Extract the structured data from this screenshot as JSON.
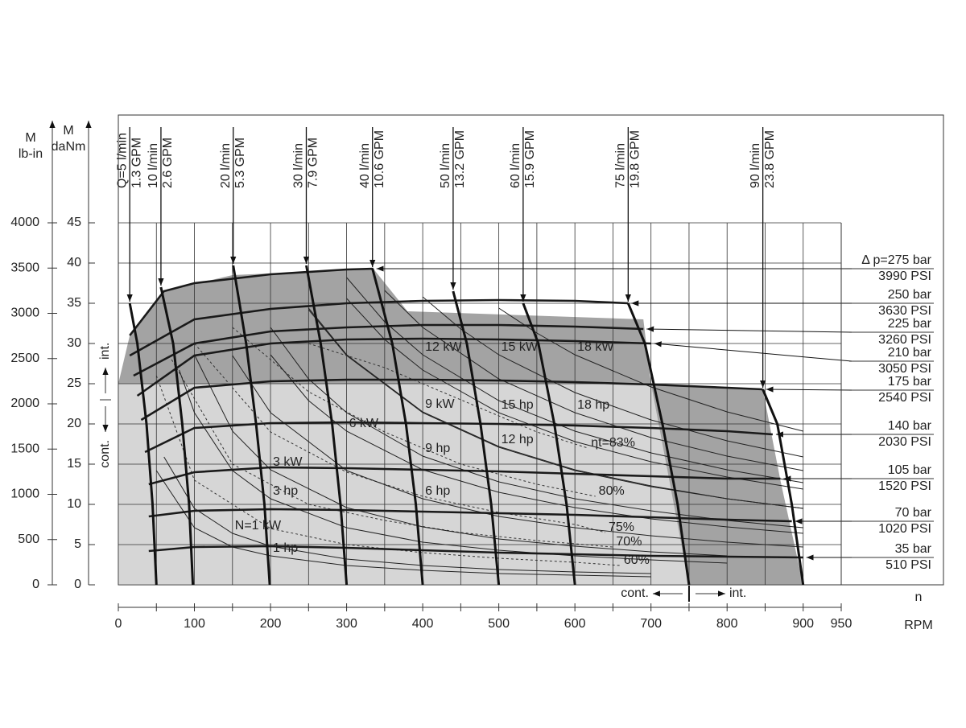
{
  "chart_data": {
    "type": "motor-performance-map",
    "x_symbol": "n",
    "x_label": "RPM",
    "y_symbol": "M",
    "y_label": "daNm",
    "y2_symbol": "M",
    "y2_label": "lb-in",
    "xlim": [
      0,
      950
    ],
    "xticks": [
      0,
      100,
      200,
      300,
      400,
      500,
      600,
      700,
      800,
      900,
      950
    ],
    "xgrid": [
      0,
      50,
      100,
      150,
      200,
      250,
      300,
      350,
      400,
      450,
      500,
      550,
      600,
      650,
      700,
      750,
      800,
      850,
      900,
      950
    ],
    "ylim": [
      0,
      45
    ],
    "yticks": [
      0,
      5,
      10,
      15,
      20,
      25,
      30,
      35,
      40,
      45
    ],
    "y2lim": [
      0,
      4000
    ],
    "y2ticks": [
      0,
      500,
      1000,
      1500,
      2000,
      2500,
      3000,
      3500,
      4000
    ],
    "grid": true,
    "cont_label": "cont.",
    "int_label": "int.",
    "x_split": 750,
    "y_split": 23,
    "regions": [
      {
        "color": "#d6d6d6",
        "x": [
          0,
          0,
          700,
          750
        ],
        "values": [
          0,
          25,
          25,
          0
        ]
      },
      {
        "color": "#a3a3a3",
        "x": [
          0,
          15,
          60,
          150,
          335,
          380,
          690,
          700,
          847,
          870,
          900,
          750,
          700,
          0
        ],
        "values": [
          25,
          31,
          36.5,
          38.5,
          39.3,
          34,
          33,
          25,
          24.3,
          13,
          0,
          0,
          25,
          25
        ]
      }
    ],
    "pressure_series": [
      {
        "name": "Δ p=275 bar",
        "psi": "3990 PSI",
        "x": [
          15,
          60,
          100,
          200,
          300,
          335
        ],
        "values": [
          31,
          36.5,
          37.5,
          38.6,
          39.2,
          39.3
        ]
      },
      {
        "name": "250 bar",
        "psi": "3630 PSI",
        "x": [
          15,
          100,
          200,
          300,
          400,
          500,
          600,
          670
        ],
        "values": [
          28.5,
          33,
          34.3,
          35,
          35.3,
          35.4,
          35.3,
          35
        ]
      },
      {
        "name": "225 bar",
        "psi": "3260 PSI",
        "x": [
          20,
          100,
          200,
          300,
          400,
          500,
          600,
          690
        ],
        "values": [
          26,
          30,
          31.5,
          32,
          32.3,
          32.3,
          32.1,
          31.8
        ]
      },
      {
        "name": "210 bar",
        "psi": "3050 PSI",
        "x": [
          25,
          100,
          200,
          300,
          400,
          500,
          600,
          700
        ],
        "values": [
          23.5,
          28.5,
          30,
          30.5,
          30.6,
          30.5,
          30.3,
          30
        ]
      },
      {
        "name": "175 bar",
        "psi": "2540 PSI",
        "x": [
          30,
          100,
          200,
          300,
          400,
          500,
          600,
          700,
          800,
          847
        ],
        "values": [
          20.5,
          24.5,
          25.3,
          25.5,
          25.5,
          25.4,
          25.2,
          24.9,
          24.5,
          24.3
        ]
      },
      {
        "name": "140 bar",
        "psi": "2030 PSI",
        "x": [
          35,
          100,
          200,
          300,
          400,
          500,
          600,
          700,
          800,
          860
        ],
        "values": [
          16.5,
          19.5,
          20.1,
          20.2,
          20.1,
          20,
          19.8,
          19.5,
          19.1,
          18.7
        ]
      },
      {
        "name": "105 bar",
        "psi": "1520 PSI",
        "x": [
          40,
          100,
          200,
          300,
          400,
          500,
          600,
          700,
          800,
          870
        ],
        "values": [
          12.5,
          14,
          14.6,
          14.5,
          14.3,
          14.1,
          13.8,
          13.5,
          13.2,
          13.2
        ]
      },
      {
        "name": "70 bar",
        "psi": "1020 PSI",
        "x": [
          40,
          100,
          200,
          300,
          400,
          500,
          600,
          700,
          800,
          885
        ],
        "values": [
          8.5,
          9.2,
          9.4,
          9.3,
          9.1,
          8.9,
          8.7,
          8.4,
          8.1,
          7.9
        ]
      },
      {
        "name": "35 bar",
        "psi": "510 PSI",
        "x": [
          40,
          100,
          200,
          300,
          400,
          500,
          600,
          700,
          800,
          900
        ],
        "values": [
          4.2,
          4.7,
          4.8,
          4.6,
          4.3,
          4,
          3.8,
          3.6,
          3.5,
          3.4
        ]
      }
    ],
    "flow_series": [
      {
        "name": "Q=5 l/min",
        "gpm": "1.3 GPM",
        "x": [
          50,
          45,
          37,
          25,
          15
        ],
        "values": [
          0,
          10,
          20,
          30,
          35
        ]
      },
      {
        "name": "10 l/min",
        "gpm": "2.6 GPM",
        "x": [
          98,
          93,
          84,
          72,
          56
        ],
        "values": [
          0,
          10,
          20,
          30,
          37
        ]
      },
      {
        "name": "20 l/min",
        "gpm": "5.3 GPM",
        "x": [
          199,
          192,
          181,
          168,
          151
        ],
        "values": [
          0,
          10,
          20,
          30,
          39.7
        ]
      },
      {
        "name": "30 l/min",
        "gpm": "7.9 GPM",
        "x": [
          300,
          292,
          281,
          266,
          247
        ],
        "values": [
          0,
          10,
          20,
          30,
          39.7
        ]
      },
      {
        "name": "40 l/min",
        "gpm": "10.6 GPM",
        "x": [
          400,
          391,
          378,
          360,
          334
        ],
        "values": [
          0,
          10,
          20,
          30,
          39.3
        ]
      },
      {
        "name": "50 l/min",
        "gpm": "13.2 GPM",
        "x": [
          500,
          490,
          476,
          458,
          440
        ],
        "values": [
          0,
          10,
          20,
          30,
          36.5
        ]
      },
      {
        "name": "60 l/min",
        "gpm": "15.9 GPM",
        "x": [
          600,
          589,
          573,
          552,
          532
        ],
        "values": [
          0,
          10,
          20,
          30,
          35
        ]
      },
      {
        "name": "75 l/min",
        "gpm": "19.8 GPM",
        "x": [
          750,
          735,
          715,
          692,
          670
        ],
        "values": [
          0,
          10,
          20,
          30,
          35
        ]
      },
      {
        "name": "90 l/min",
        "gpm": "23.8 GPM",
        "x": [
          900,
          885,
          866,
          847
        ],
        "values": [
          0,
          10,
          20,
          24.3
        ]
      }
    ],
    "power_kw": [
      {
        "name": "N=1 kW",
        "x": [
          60,
          100,
          150,
          200,
          300,
          400,
          500,
          600,
          700
        ],
        "values": [
          15.9,
          9.5,
          6.4,
          4.8,
          3.2,
          2.4,
          1.9,
          1.6,
          1.4
        ]
      },
      {
        "name": "3 kW",
        "x": [
          100,
          150,
          200,
          300,
          400,
          500,
          600,
          700,
          800
        ],
        "values": [
          28.6,
          19.1,
          14.3,
          9.6,
          7.2,
          5.7,
          4.8,
          4.1,
          3.6
        ]
      },
      {
        "name": "6 kW",
        "x": [
          200,
          250,
          300,
          400,
          500,
          600,
          700,
          800,
          900
        ],
        "values": [
          28.6,
          22.9,
          19.1,
          14.3,
          11.5,
          9.6,
          8.2,
          7.2,
          6.4
        ]
      },
      {
        "name": "9 kW",
        "x": [
          250,
          300,
          400,
          500,
          600,
          700,
          800,
          900
        ],
        "values": [
          34.4,
          28.6,
          21.5,
          17.2,
          14.3,
          12.3,
          10.7,
          9.5
        ]
      },
      {
        "name": "12 kW",
        "x": [
          300,
          350,
          400,
          500,
          600,
          700,
          800,
          900
        ],
        "values": [
          38.2,
          32.7,
          28.6,
          22.9,
          19.1,
          16.4,
          14.3,
          12.7
        ]
      },
      {
        "name": "15 kW",
        "x": [
          400,
          450,
          500,
          600,
          700,
          800,
          900
        ],
        "values": [
          35.8,
          31.8,
          28.6,
          23.9,
          20.5,
          17.9,
          15.9
        ]
      },
      {
        "name": "18 kW",
        "x": [
          500,
          550,
          600,
          700,
          800,
          900
        ],
        "values": [
          34.4,
          31.3,
          28.6,
          24.6,
          21.5,
          19.1
        ]
      }
    ],
    "power_hp": [
      {
        "name": "1 hp",
        "x": [
          50,
          100,
          150,
          200,
          300,
          400,
          500,
          600,
          700
        ],
        "values": [
          14.2,
          7.1,
          4.7,
          3.6,
          2.4,
          1.8,
          1.4,
          1.2,
          1
        ]
      },
      {
        "name": "3 hp",
        "x": [
          80,
          100,
          150,
          200,
          300,
          400,
          500,
          600,
          700,
          800
        ],
        "values": [
          26.7,
          21.4,
          14.2,
          10.7,
          7.1,
          5.3,
          4.3,
          3.6,
          3.1,
          2.7
        ]
      },
      {
        "name": "6 hp",
        "x": [
          150,
          200,
          300,
          400,
          500,
          600,
          700,
          800,
          900
        ],
        "values": [
          28.5,
          21.4,
          14.2,
          10.7,
          8.5,
          7.1,
          6.1,
          5.3,
          4.7
        ]
      },
      {
        "name": "9 hp",
        "x": [
          200,
          250,
          300,
          400,
          500,
          600,
          700,
          800,
          900
        ],
        "values": [
          32,
          25.6,
          21.4,
          16,
          12.8,
          10.7,
          9.2,
          8,
          7.1
        ]
      },
      {
        "name": "12 hp",
        "x": [
          250,
          300,
          400,
          500,
          600,
          700,
          800,
          900
        ],
        "values": [
          34.2,
          28.5,
          21.4,
          17.1,
          14.2,
          12.2,
          10.7,
          9.5
        ]
      },
      {
        "name": "15 hp",
        "x": [
          300,
          350,
          400,
          500,
          600,
          700,
          800,
          900
        ],
        "values": [
          35.6,
          30.5,
          26.7,
          21.4,
          17.8,
          15.3,
          13.4,
          11.9
        ]
      },
      {
        "name": "18 hp",
        "x": [
          350,
          400,
          500,
          600,
          700,
          800,
          900
        ],
        "values": [
          36.6,
          32,
          25.6,
          21.4,
          18.3,
          16,
          14.2
        ]
      }
    ],
    "efficiency": [
      {
        "name": "ηt=83%",
        "x": [
          250,
          350,
          450,
          550,
          617
        ],
        "values": [
          30,
          27,
          23,
          19,
          17
        ]
      },
      {
        "name": "80%",
        "x": [
          150,
          250,
          350,
          450,
          550,
          627
        ],
        "values": [
          32,
          24,
          19,
          15,
          12.5,
          11
        ]
      },
      {
        "name": "75%",
        "x": [
          100,
          200,
          300,
          400,
          500,
          600,
          640
        ],
        "values": [
          30,
          19,
          14,
          11,
          9,
          7.5,
          6.5
        ]
      },
      {
        "name": "70%",
        "x": [
          70,
          150,
          250,
          350,
          450,
          550,
          650
        ],
        "values": [
          28,
          15,
          10,
          8,
          6.5,
          5.5,
          4.7
        ]
      },
      {
        "name": "60%",
        "x": [
          50,
          100,
          200,
          300,
          400,
          500,
          600,
          660
        ],
        "values": [
          26,
          13,
          7,
          5,
          4,
          3.3,
          2.8,
          2.4
        ]
      }
    ]
  }
}
